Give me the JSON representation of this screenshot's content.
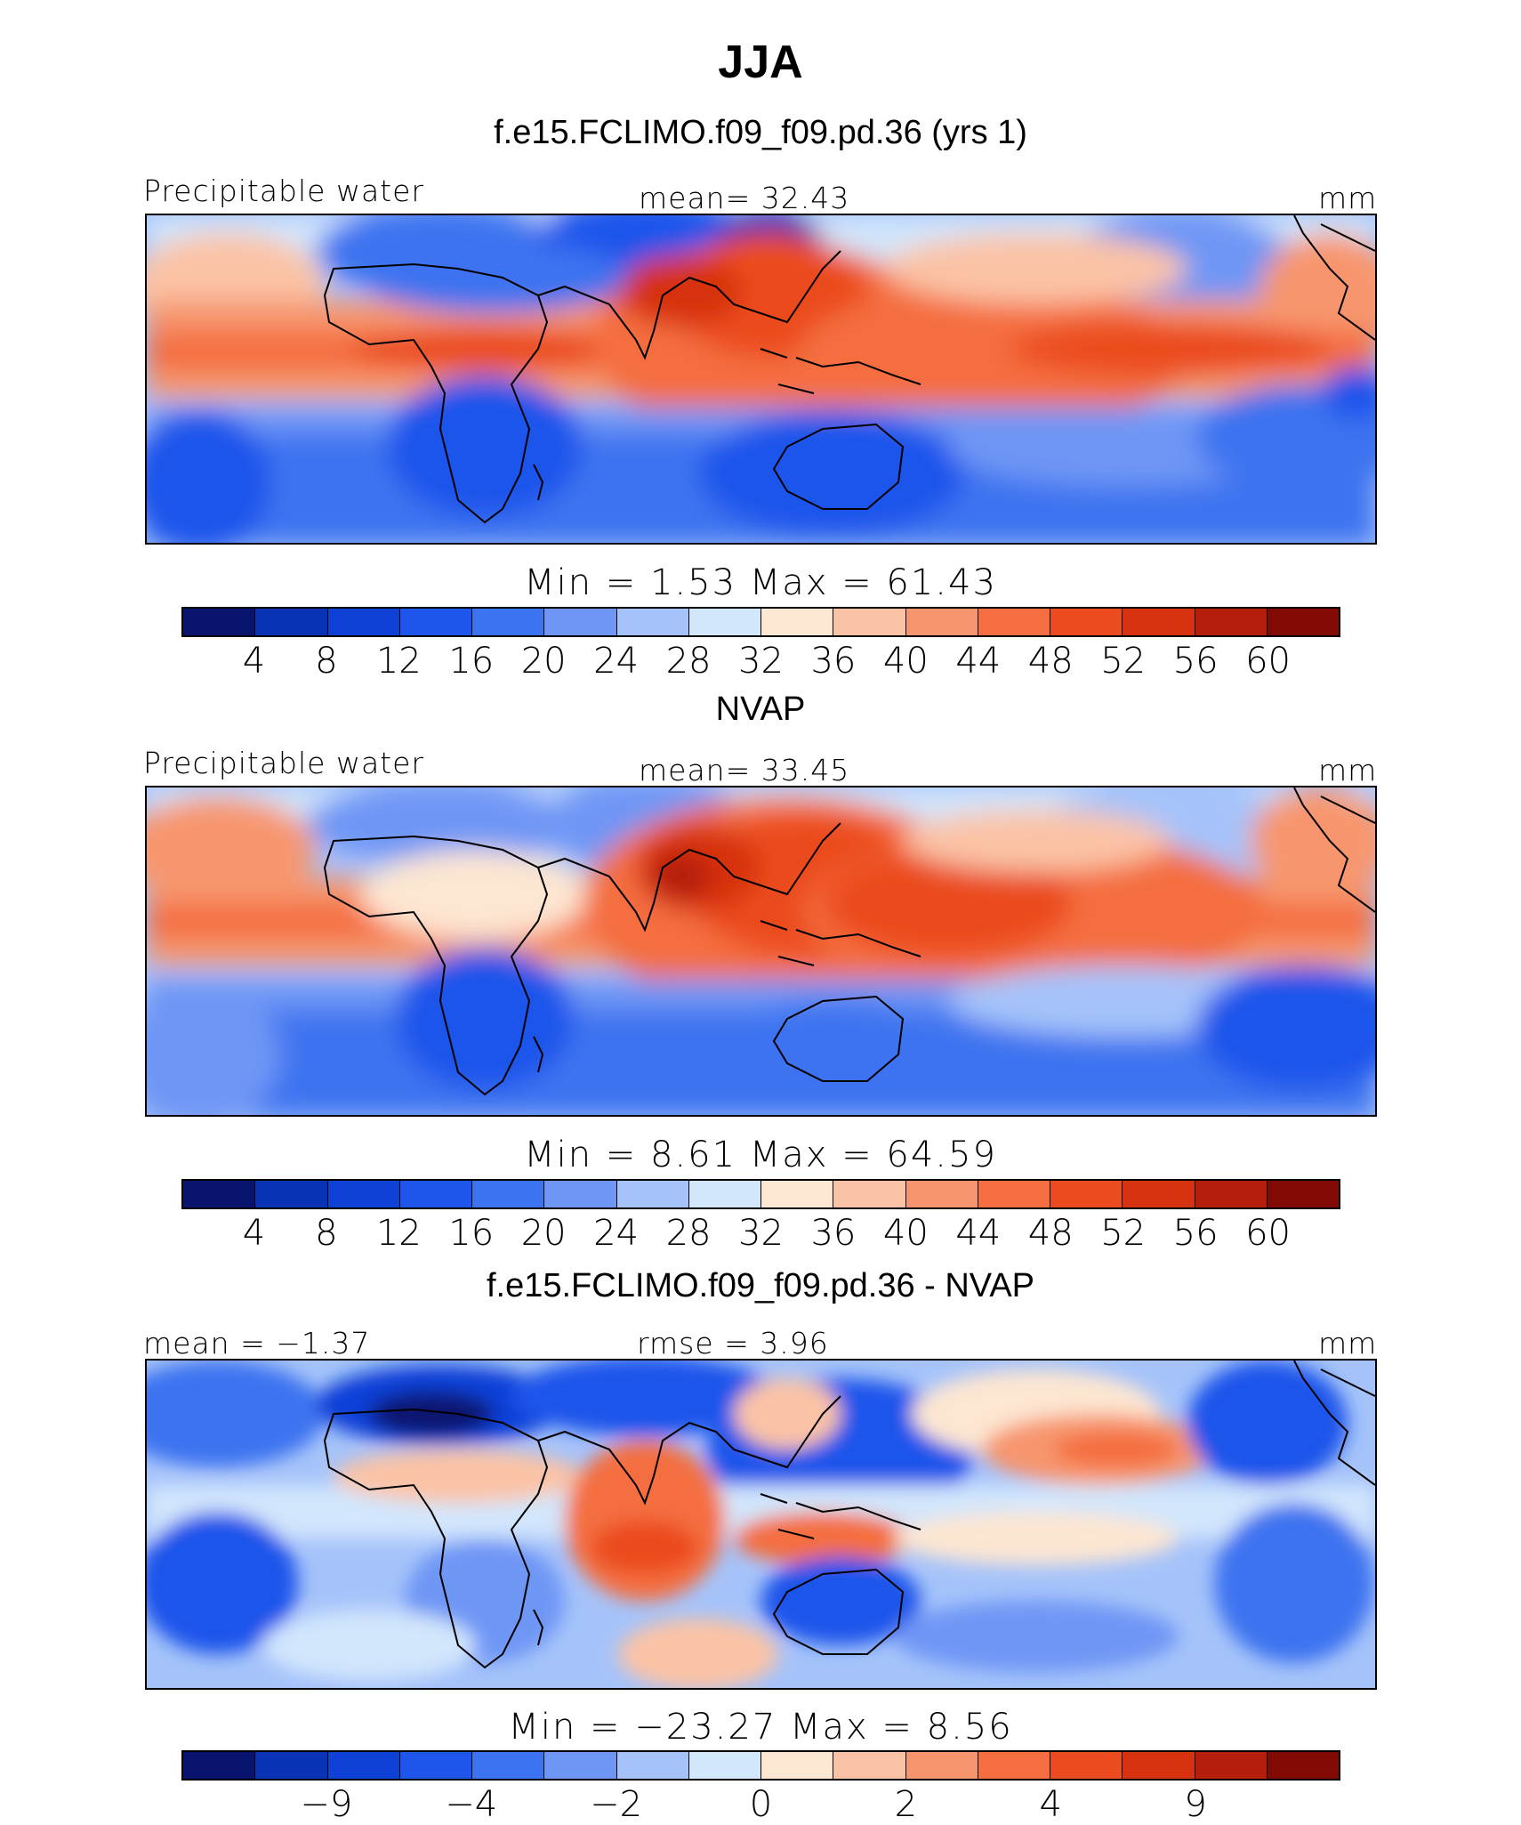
{
  "title": "JJA",
  "colors": {
    "scale": [
      "#08146e",
      "#0a32b4",
      "#0f41d7",
      "#1e55eb",
      "#3c73f0",
      "#6e96f5",
      "#a5c3fa",
      "#d2e6fc",
      "#fde6d2",
      "#fbc3a5",
      "#f7966e",
      "#f46e41",
      "#eb4b1e",
      "#d7320f",
      "#b41e0a",
      "#820a05"
    ]
  },
  "panels": [
    {
      "title": "f.e15.FCLIMO.f09_f09.pd.36 (yrs 1)",
      "left_label": "Precipitable water",
      "center_label": "mean=   32.43",
      "right_label": "mm",
      "minmax": "Min  =      1.53  Max  =    61.43",
      "ticks": [
        "4",
        "8",
        "12",
        "16",
        "20",
        "24",
        "28",
        "32",
        "36",
        "40",
        "44",
        "48",
        "52",
        "56",
        "60"
      ]
    },
    {
      "title": "NVAP",
      "left_label": "Precipitable water",
      "center_label": "mean=   33.45",
      "right_label": "mm",
      "minmax": "Min  =      8.61  Max  =    64.59",
      "ticks": [
        "4",
        "8",
        "12",
        "16",
        "20",
        "24",
        "28",
        "32",
        "36",
        "40",
        "44",
        "48",
        "52",
        "56",
        "60"
      ]
    },
    {
      "title": "f.e15.FCLIMO.f09_f09.pd.36 - NVAP",
      "left_label": "mean  =   −1.37",
      "center_label": "rmse  =    3.96",
      "right_label": "mm",
      "minmax": "Min  =  −23.27  Max  =      8.56",
      "ticks": [
        "−9",
        "−4",
        "−2",
        "0",
        "2",
        "4",
        "9"
      ]
    }
  ],
  "chart_data": [
    {
      "type": "heatmap",
      "title": "f.e15.FCLIMO.f09_f09.pd.36 (yrs 1)",
      "field": "Precipitable water",
      "units": "mm",
      "mean": 32.43,
      "min": 1.53,
      "max": 61.43,
      "contour_levels": [
        4,
        8,
        12,
        16,
        20,
        24,
        28,
        32,
        36,
        40,
        44,
        48,
        52,
        56,
        60
      ]
    },
    {
      "type": "heatmap",
      "title": "NVAP",
      "field": "Precipitable water",
      "units": "mm",
      "mean": 33.45,
      "min": 8.61,
      "max": 64.59,
      "contour_levels": [
        4,
        8,
        12,
        16,
        20,
        24,
        28,
        32,
        36,
        40,
        44,
        48,
        52,
        56,
        60
      ]
    },
    {
      "type": "heatmap",
      "title": "f.e15.FCLIMO.f09_f09.pd.36 - NVAP",
      "units": "mm",
      "mean": -1.37,
      "rmse": 3.96,
      "min": -23.27,
      "max": 8.56,
      "contour_levels": [
        -9,
        -4,
        -2,
        0,
        2,
        4,
        9
      ]
    }
  ]
}
